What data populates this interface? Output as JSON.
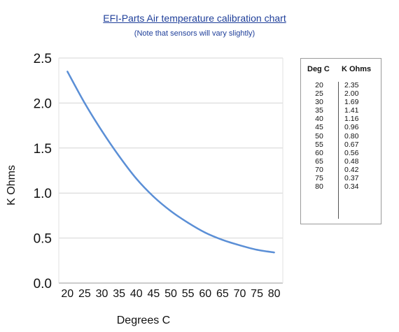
{
  "chart_data": {
    "type": "line",
    "title": "EFI-Parts Air temperature calibration chart",
    "subtitle": "(Note that sensors will vary slightly)",
    "xlabel": "Degrees C",
    "ylabel": "K Ohms",
    "x": [
      20,
      25,
      30,
      35,
      40,
      45,
      50,
      55,
      60,
      65,
      70,
      75,
      80
    ],
    "series": [
      {
        "values": [
          2.35,
          2.0,
          1.69,
          1.41,
          1.16,
          0.96,
          0.8,
          0.67,
          0.56,
          0.48,
          0.42,
          0.37,
          0.34
        ]
      }
    ],
    "xlim": [
      17.5,
      82.5
    ],
    "ylim": [
      0,
      2.5
    ],
    "yticks": [
      "0.0",
      "0.5",
      "1.0",
      "1.5",
      "2.0",
      "2.5"
    ],
    "xticks": [
      "20",
      "25",
      "30",
      "35",
      "40",
      "45",
      "50",
      "55",
      "60",
      "65",
      "70",
      "75",
      "80"
    ],
    "grid": true,
    "line_color": "#5b8fd6",
    "table": {
      "headers": [
        "Deg C",
        "K Ohms"
      ],
      "rows": [
        [
          "20",
          "2.35"
        ],
        [
          "25",
          "2.00"
        ],
        [
          "30",
          "1.69"
        ],
        [
          "35",
          "1.41"
        ],
        [
          "40",
          "1.16"
        ],
        [
          "45",
          "0.96"
        ],
        [
          "50",
          "0.80"
        ],
        [
          "55",
          "0.67"
        ],
        [
          "60",
          "0.56"
        ],
        [
          "65",
          "0.48"
        ],
        [
          "70",
          "0.42"
        ],
        [
          "75",
          "0.37"
        ],
        [
          "80",
          "0.34"
        ]
      ]
    }
  }
}
